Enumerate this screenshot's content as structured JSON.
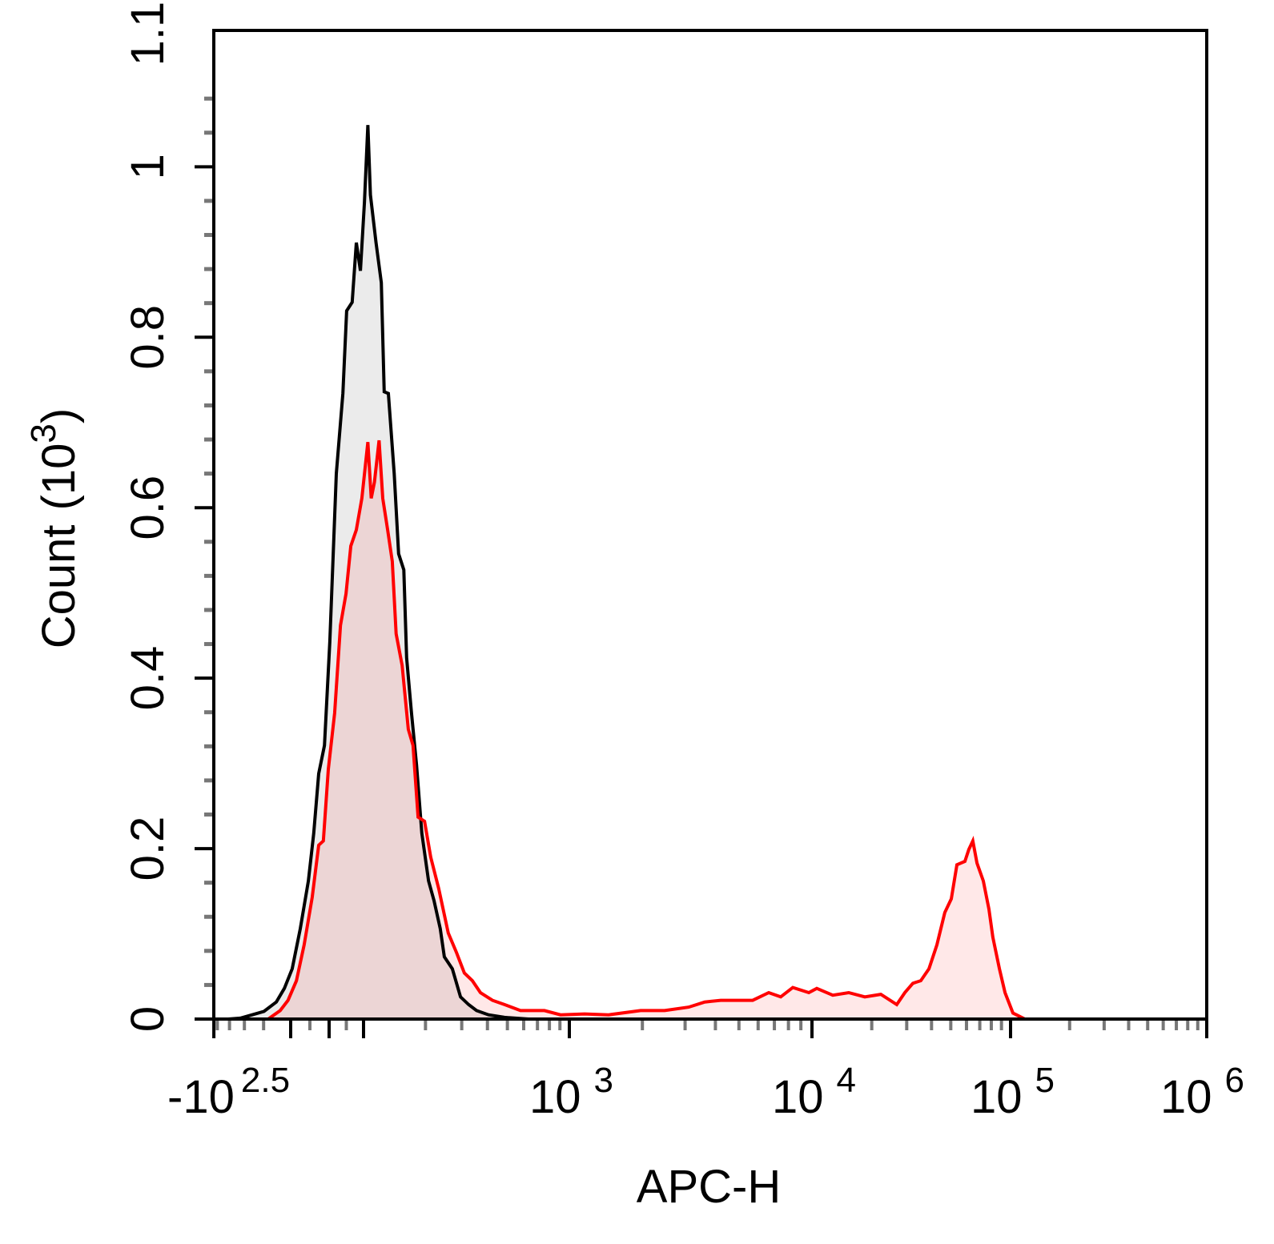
{
  "chart_data": {
    "type": "area",
    "title": "",
    "xlabel": "APC-H",
    "ylabel": "Count",
    "ylabel_unit": {
      "base": "10",
      "exp": "3"
    },
    "x_scale": "biexponential",
    "xlim": [
      -316,
      1000000
    ],
    "ylim": [
      0,
      1.16
    ],
    "grid": false,
    "legend": "none",
    "x_ticks": [
      {
        "value": -316,
        "base": "-10",
        "exp": "2.5"
      },
      {
        "value": 1000,
        "base": "10",
        "exp": "3"
      },
      {
        "value": 10000,
        "base": "10",
        "exp": "4"
      },
      {
        "value": 100000,
        "base": "10",
        "exp": "5"
      },
      {
        "value": 1000000,
        "base": "10",
        "exp": "6"
      }
    ],
    "y_ticks": [
      {
        "value": 0,
        "label": "0"
      },
      {
        "value": 0.2,
        "label": "0.2"
      },
      {
        "value": 0.4,
        "label": "0.4"
      },
      {
        "value": 0.6,
        "label": "0.6"
      },
      {
        "value": 0.8,
        "label": "0.8"
      },
      {
        "value": 1.0,
        "label": "1"
      },
      {
        "value": 1.1,
        "label": "1.1"
      }
    ],
    "series": [
      {
        "color": "#000000",
        "fill": "#ebebeb",
        "points": [
          [
            -255,
            0
          ],
          [
            -213,
            0.001
          ],
          [
            -178,
            0.005
          ],
          [
            -149,
            0.009
          ],
          [
            -124,
            0.02
          ],
          [
            -110,
            0.036
          ],
          [
            -96,
            0.059
          ],
          [
            -75,
            0.106
          ],
          [
            -54,
            0.162
          ],
          [
            -40,
            0.218
          ],
          [
            -27,
            0.288
          ],
          [
            -12,
            0.321
          ],
          [
            2,
            0.443
          ],
          [
            21,
            0.64
          ],
          [
            40,
            0.734
          ],
          [
            51,
            0.831
          ],
          [
            67,
            0.841
          ],
          [
            79,
            0.911
          ],
          [
            91,
            0.878
          ],
          [
            101,
            0.958
          ],
          [
            105,
            1.049
          ],
          [
            108,
            0.967
          ],
          [
            115,
            0.911
          ],
          [
            122,
            0.864
          ],
          [
            126,
            0.736
          ],
          [
            132,
            0.734
          ],
          [
            141,
            0.64
          ],
          [
            148,
            0.546
          ],
          [
            157,
            0.527
          ],
          [
            162,
            0.424
          ],
          [
            171,
            0.359
          ],
          [
            181,
            0.298
          ],
          [
            192,
            0.218
          ],
          [
            207,
            0.162
          ],
          [
            220,
            0.139
          ],
          [
            236,
            0.106
          ],
          [
            247,
            0.073
          ],
          [
            270,
            0.059
          ],
          [
            296,
            0.026
          ],
          [
            324,
            0.017
          ],
          [
            354,
            0.01
          ],
          [
            405,
            0.005
          ],
          [
            484,
            0.002
          ],
          [
            634,
            0
          ]
        ]
      },
      {
        "color": "#ff0000",
        "fill": "rgba(255,0,0,0.09)",
        "points": [
          [
            -140,
            0
          ],
          [
            -117,
            0.01
          ],
          [
            -104,
            0.022
          ],
          [
            -85,
            0.045
          ],
          [
            -65,
            0.087
          ],
          [
            -44,
            0.143
          ],
          [
            -27,
            0.204
          ],
          [
            -15,
            0.209
          ],
          [
            -2,
            0.293
          ],
          [
            16,
            0.359
          ],
          [
            33,
            0.462
          ],
          [
            49,
            0.499
          ],
          [
            63,
            0.555
          ],
          [
            79,
            0.574
          ],
          [
            95,
            0.611
          ],
          [
            105,
            0.677
          ],
          [
            109,
            0.611
          ],
          [
            113,
            0.63
          ],
          [
            119,
            0.679
          ],
          [
            124,
            0.611
          ],
          [
            131,
            0.574
          ],
          [
            138,
            0.537
          ],
          [
            144,
            0.452
          ],
          [
            154,
            0.415
          ],
          [
            165,
            0.34
          ],
          [
            174,
            0.321
          ],
          [
            184,
            0.237
          ],
          [
            198,
            0.232
          ],
          [
            212,
            0.19
          ],
          [
            232,
            0.153
          ],
          [
            258,
            0.101
          ],
          [
            283,
            0.078
          ],
          [
            309,
            0.054
          ],
          [
            338,
            0.045
          ],
          [
            370,
            0.031
          ],
          [
            423,
            0.022
          ],
          [
            484,
            0.017
          ],
          [
            579,
            0.01
          ],
          [
            757,
            0.01
          ],
          [
            906,
            0.005
          ],
          [
            1155,
            0.006
          ],
          [
            1452,
            0.005
          ],
          [
            1966,
            0.01
          ],
          [
            2470,
            0.01
          ],
          [
            3105,
            0.014
          ],
          [
            3615,
            0.02
          ],
          [
            4206,
            0.022
          ],
          [
            4898,
            0.022
          ],
          [
            5700,
            0.022
          ],
          [
            6635,
            0.031
          ],
          [
            7433,
            0.026
          ],
          [
            8337,
            0.037
          ],
          [
            9705,
            0.031
          ],
          [
            10570,
            0.036
          ],
          [
            12730,
            0.028
          ],
          [
            15310,
            0.031
          ],
          [
            18450,
            0.026
          ],
          [
            22230,
            0.029
          ],
          [
            26730,
            0.017
          ],
          [
            29370,
            0.031
          ],
          [
            32210,
            0.042
          ],
          [
            35320,
            0.045
          ],
          [
            38810,
            0.059
          ],
          [
            42560,
            0.087
          ],
          [
            46670,
            0.125
          ],
          [
            50320,
            0.141
          ],
          [
            53700,
            0.181
          ],
          [
            58880,
            0.185
          ],
          [
            61660,
            0.199
          ],
          [
            64570,
            0.209
          ],
          [
            67760,
            0.183
          ],
          [
            72950,
            0.162
          ],
          [
            77800,
            0.129
          ],
          [
            81470,
            0.096
          ],
          [
            87900,
            0.059
          ],
          [
            93760,
            0.031
          ],
          [
            102900,
            0.007
          ],
          [
            118300,
            0
          ]
        ]
      }
    ]
  }
}
